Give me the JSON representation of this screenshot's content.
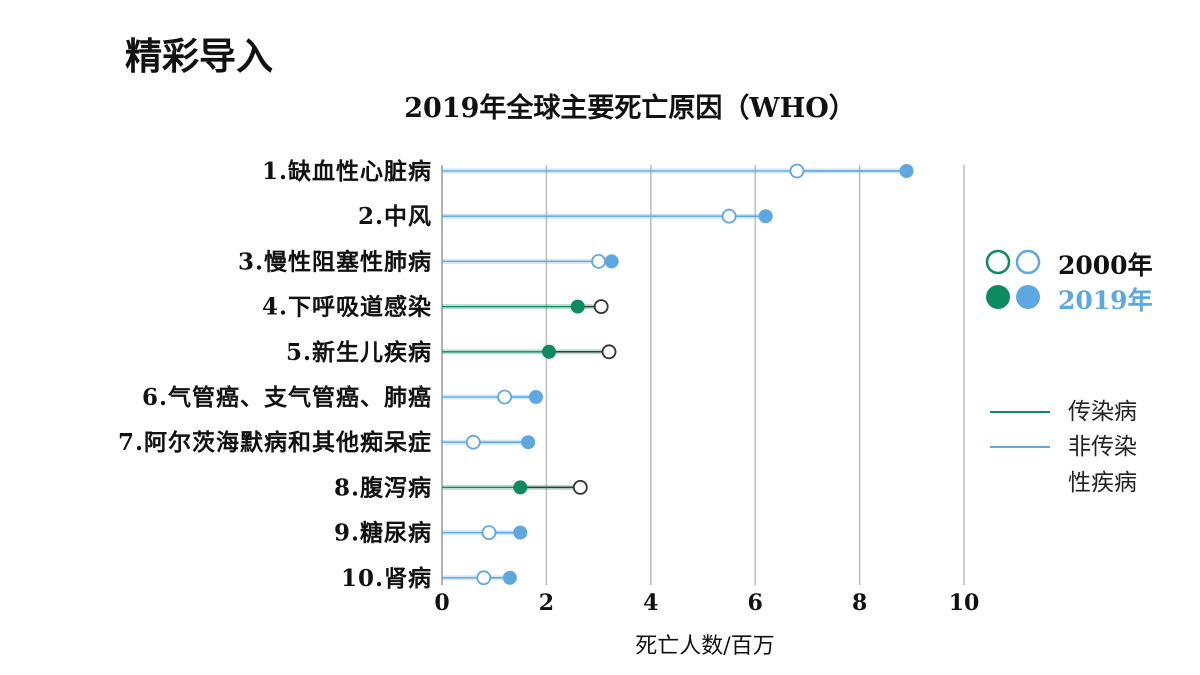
{
  "page": {
    "heading": "精彩导入"
  },
  "legend": {
    "year_2000": "2000年",
    "year_2019": "2019年",
    "communicable": "传染病",
    "noncommunicable_line1": "非传染",
    "noncommunicable_line2": "性疾病"
  },
  "colors": {
    "communicable": "#0e8a5f",
    "noncommunicable": "#5ea7e0",
    "grid": "#bdbdbd",
    "year_2019_text": "#5ea7e0"
  },
  "chart_data": {
    "type": "dumbbell",
    "title": "2019年全球主要死亡原因（WHO）",
    "xlabel": "死亡人数/百万",
    "xlim": [
      0,
      10
    ],
    "xticks": [
      0,
      2,
      4,
      6,
      8,
      10
    ],
    "grid": true,
    "legend_position": "right",
    "categories": [
      "1.缺血性心脏病",
      "2.中风",
      "3.慢性阻塞性肺病",
      "4.下呼吸道感染",
      "5.新生儿疾病",
      "6.气管癌、支气管癌、肺癌",
      "7.阿尔茨海默病和其他痴呆症",
      "8.腹泻病",
      "9.糖尿病",
      "10.肾病"
    ],
    "disease_type": [
      "noncommunicable",
      "noncommunicable",
      "noncommunicable",
      "communicable",
      "communicable",
      "noncommunicable",
      "noncommunicable",
      "communicable",
      "noncommunicable",
      "noncommunicable"
    ],
    "series": [
      {
        "name": "2000年",
        "values": [
          6.8,
          5.5,
          3.0,
          3.05,
          3.2,
          1.2,
          0.6,
          2.65,
          0.9,
          0.8
        ]
      },
      {
        "name": "2019年",
        "values": [
          8.9,
          6.2,
          3.25,
          2.6,
          2.05,
          1.8,
          1.65,
          1.5,
          1.5,
          1.3
        ]
      }
    ]
  }
}
